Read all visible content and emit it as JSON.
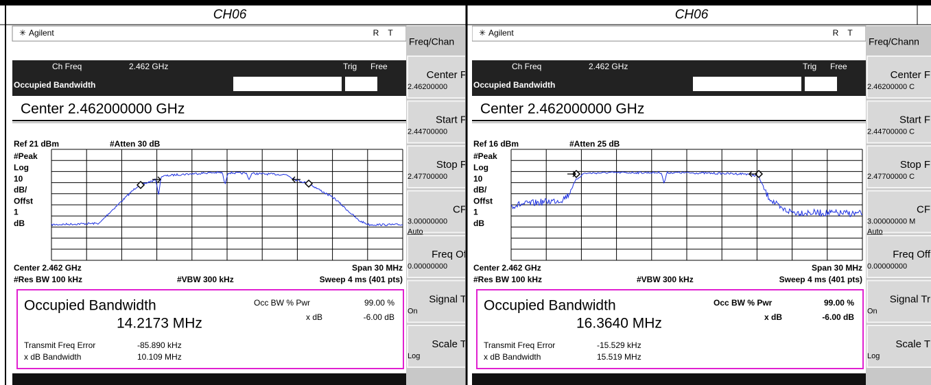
{
  "header": {
    "left": "CH06",
    "right": "CH06"
  },
  "panels": [
    {
      "brand": "Agilent",
      "status_r": "R",
      "status_t": "T",
      "ch_freq_label": "Ch Freq",
      "ch_freq": "2.462 GHz",
      "trig": "Trig",
      "trig_mode": "Free",
      "mode": "Occupied Bandwidth",
      "center": "Center 2.462000000 GHz",
      "ref": "Ref 21 dBm",
      "atten": "#Atten 30 dB",
      "scale_labels": [
        "#Peak",
        "Log",
        "10",
        "dB/",
        "Offst",
        "1",
        "dB"
      ],
      "center_freq": "Center 2.462 GHz",
      "span": "Span 30 MHz",
      "rbw": "#Res BW 100 kHz",
      "vbw": "#VBW 300 kHz",
      "sweep": "Sweep 4 ms (401 pts)",
      "result_title": "Occupied Bandwidth",
      "occ_bw": "14.2173 MHz",
      "pwr_label": "Occ BW % Pwr",
      "pwr_value": "99.00 %",
      "xdb_label": "x dB",
      "xdb_value": "-6.00 dB",
      "freq_err_label": "Transmit Freq Error",
      "freq_err": "-85.890 kHz",
      "xdb_bw_label": "x dB Bandwidth",
      "xdb_bw": "10.109 MHz",
      "menu_title": "Freq/Chan",
      "softkeys": [
        {
          "label": "Center F",
          "value": "2.46200000"
        },
        {
          "label": "Start F",
          "value": "2.44700000"
        },
        {
          "label": "Stop F",
          "value": "2.47700000"
        },
        {
          "label": "CF",
          "value": "3.00000000",
          "extra": "Auto"
        },
        {
          "label": "Freq Of",
          "value": "0.00000000"
        },
        {
          "label": "Signal T",
          "value": "On"
        },
        {
          "label": "Scale T",
          "value": "Log"
        }
      ]
    },
    {
      "brand": "Agilent",
      "status_r": "R",
      "status_t": "T",
      "ch_freq_label": "Ch Freq",
      "ch_freq": "2.462 GHz",
      "trig": "Trig",
      "trig_mode": "Free",
      "mode": "Occupied Bandwidth",
      "center": "Center 2.462000000 GHz",
      "ref": "Ref 16 dBm",
      "atten": "#Atten 25 dB",
      "scale_labels": [
        "#Peak",
        "Log",
        "10",
        "dB/",
        "Offst",
        "1",
        "dB"
      ],
      "center_freq": "Center 2.462 GHz",
      "span": "Span 30 MHz",
      "rbw": "#Res BW 100 kHz",
      "vbw": "#VBW 300 kHz",
      "sweep": "Sweep 4 ms (401 pts)",
      "result_title": "Occupied Bandwidth",
      "occ_bw": "16.3640 MHz",
      "pwr_label": "Occ BW % Pwr",
      "pwr_value": "99.00 %",
      "xdb_label": "x dB",
      "xdb_value": "-6.00 dB",
      "freq_err_label": "Transmit Freq Error",
      "freq_err": "-15.529 kHz",
      "xdb_bw_label": "x dB Bandwidth",
      "xdb_bw": "15.519 MHz",
      "menu_title": "Freq/Chann",
      "softkeys": [
        {
          "label": "Center F",
          "value": "2.46200000 C"
        },
        {
          "label": "Start F",
          "value": "2.44700000 C"
        },
        {
          "label": "Stop F",
          "value": "2.47700000 C"
        },
        {
          "label": "CF",
          "value": "3.00000000 M",
          "extra": "Auto"
        },
        {
          "label": "Freq Off",
          "value": "0.00000000"
        },
        {
          "label": "Signal Tr",
          "value": "On"
        },
        {
          "label": "Scale T",
          "value": "Log"
        }
      ]
    }
  ]
}
